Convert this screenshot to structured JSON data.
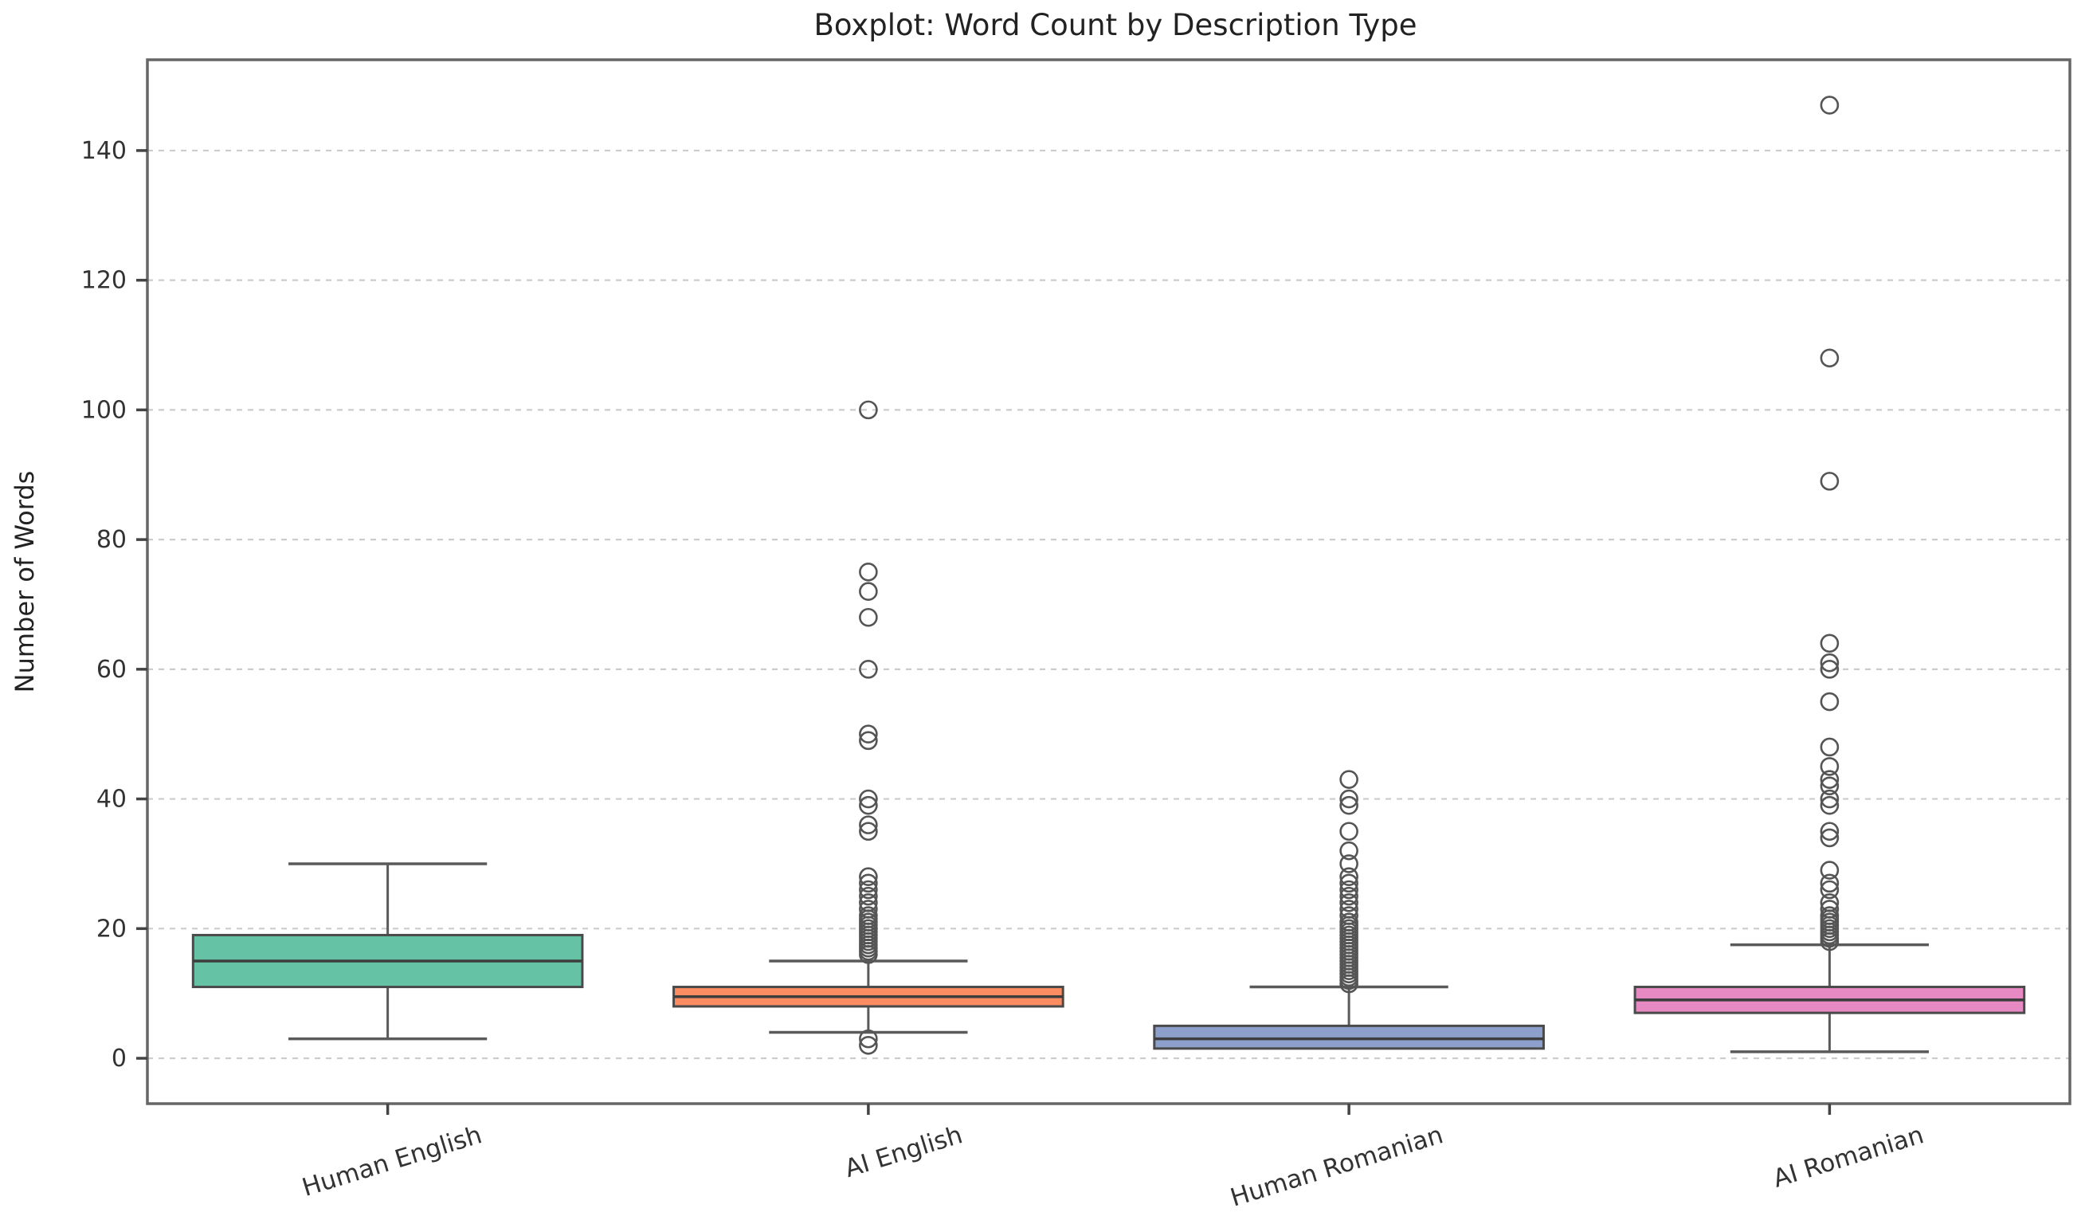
{
  "chart_data": {
    "type": "boxplot",
    "title": "Boxplot: Word Count by Description Type",
    "xlabel": "",
    "ylabel": "Number of Words",
    "categories": [
      "Human English",
      "AI English",
      "Human Romanian",
      "AI Romanian"
    ],
    "yticks": [
      0,
      20,
      40,
      60,
      80,
      100,
      120,
      140
    ],
    "ylim": [
      -7,
      154
    ],
    "grid": "horizontal-dashed",
    "legend": "none",
    "colors": {
      "box_fills": [
        "#66c2a5",
        "#fc8d62",
        "#8da0cb",
        "#e78ac3"
      ],
      "box_edge": "#4a4a4a",
      "whisker": "#5a5a5a",
      "median": "#3d3d3d",
      "flier_edge": "#555555",
      "gridline": "#cccccc",
      "spine": "#666666",
      "tick_label": "#333333",
      "title": "#222222"
    },
    "series": [
      {
        "name": "Human English",
        "whislo": 3,
        "q1": 11,
        "med": 15,
        "q3": 19,
        "whishi": 30,
        "fliers": []
      },
      {
        "name": "AI English",
        "whislo": 4,
        "q1": 8,
        "med": 9.5,
        "q3": 11,
        "whishi": 15,
        "fliers": [
          2,
          3,
          16,
          16.5,
          17,
          17.5,
          18,
          18.5,
          19,
          19.5,
          20,
          20.5,
          21,
          21.5,
          22,
          23,
          24,
          25,
          26,
          27,
          28,
          35,
          36,
          39,
          40,
          49,
          50,
          60,
          68,
          72,
          75,
          100
        ]
      },
      {
        "name": "Human Romanian",
        "whislo": 1.5,
        "q1": 1.5,
        "med": 3,
        "q3": 5,
        "whishi": 11,
        "fliers": [
          11.5,
          12,
          12.5,
          13,
          13.5,
          14,
          14.5,
          15,
          15.5,
          16,
          16.5,
          17,
          17.5,
          18,
          18.5,
          19,
          19.5,
          20,
          20.5,
          21,
          22,
          23,
          24,
          25,
          26,
          27,
          28,
          30,
          32,
          35,
          39,
          40,
          43
        ]
      },
      {
        "name": "AI Romanian",
        "whislo": 1,
        "q1": 7,
        "med": 9,
        "q3": 11,
        "whishi": 17.5,
        "fliers": [
          18,
          18.5,
          19,
          19.5,
          20,
          20.5,
          21,
          21.5,
          22,
          23,
          24,
          26,
          27,
          29,
          34,
          35,
          39,
          40,
          42,
          43,
          45,
          48,
          55,
          60,
          61,
          64,
          89,
          108,
          147
        ]
      }
    ]
  }
}
